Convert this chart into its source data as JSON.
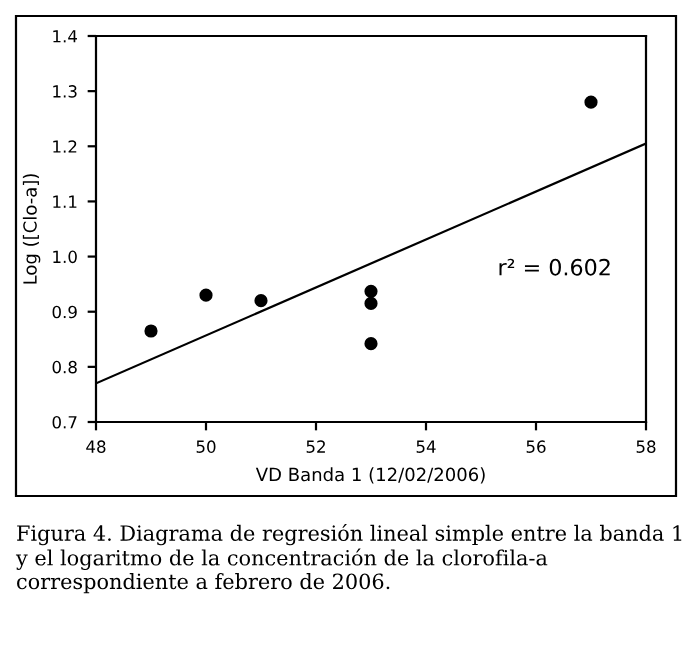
{
  "chart_data": {
    "type": "scatter",
    "xlabel": "VD Banda 1 (12/02/2006)",
    "ylabel": "Log ([Clo-a])",
    "series": [
      {
        "color": "#000000",
        "marker": "circle",
        "x": [
          49,
          50,
          51,
          53,
          53,
          53,
          57
        ],
        "values": [
          0.865,
          0.93,
          0.92,
          0.937,
          0.915,
          0.842,
          1.28
        ]
      },
      {
        "type": "line",
        "color": "#000000",
        "marker": "none",
        "x": [
          48,
          58
        ],
        "values": [
          0.77,
          1.205
        ]
      }
    ],
    "xlim": [
      48,
      58
    ],
    "xticks": [
      48,
      50,
      52,
      54,
      56,
      58
    ],
    "ylim": [
      0.7,
      1.4
    ],
    "yticks": [
      {
        "value": 0.7,
        "label": "0.7"
      },
      {
        "value": 0.8,
        "label": "0.8"
      },
      {
        "value": 0.9,
        "label": "0.9"
      },
      {
        "value": 1.0,
        "label": "1.0"
      },
      {
        "value": 1.1,
        "label": "1.1"
      },
      {
        "value": 1.2,
        "label": "1.2"
      },
      {
        "value": 1.3,
        "label": "1.3"
      },
      {
        "value": 1.4,
        "label": "1.4"
      }
    ],
    "grid": false,
    "legend": false,
    "annotations": [
      "r² = 0.602",
      "Figura 4. Diagrama de regresión lineal simple entre la banda 1 y el logaritmo de la concentración de la clorofila-a correspondiente a febrero de 2006."
    ]
  }
}
